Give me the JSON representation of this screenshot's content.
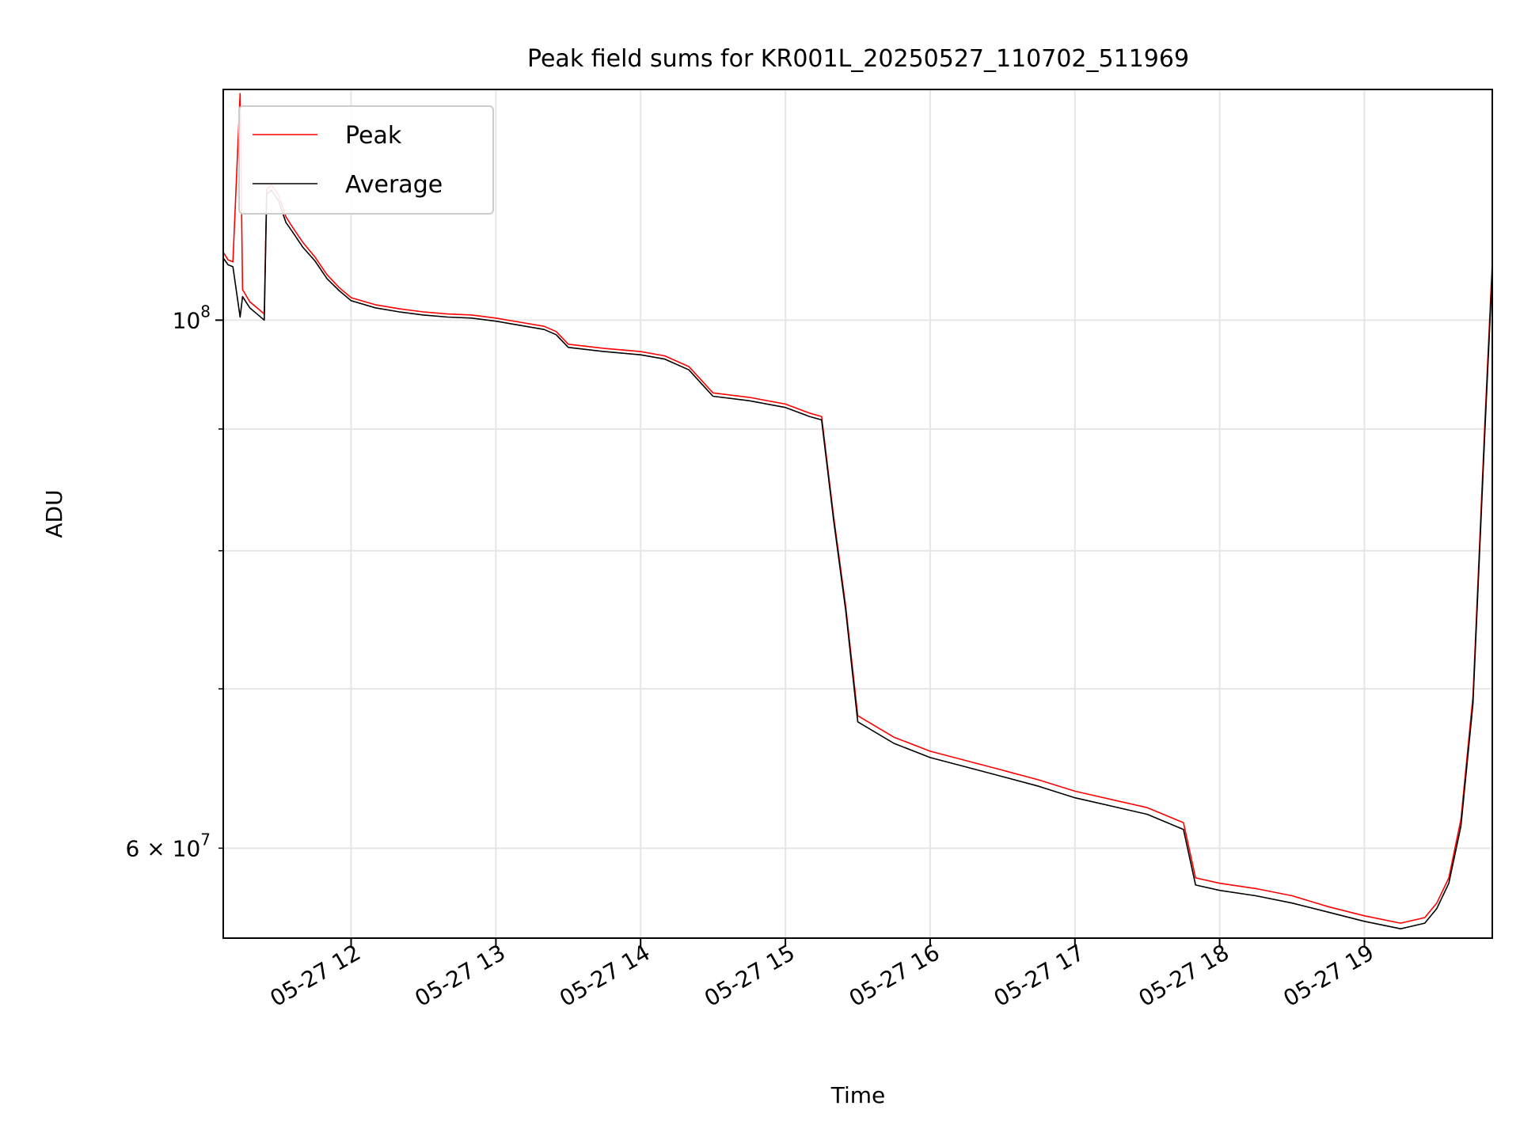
{
  "chart_data": {
    "type": "line",
    "title": "Peak field sums for KR001L_20250527_110702_511969",
    "xlabel": "Time",
    "ylabel": "ADU",
    "x_tick_labels": [
      "05-27 12",
      "05-27 13",
      "05-27 14",
      "05-27 15",
      "05-27 16",
      "05-27 17",
      "05-27 18",
      "05-27 19"
    ],
    "x_ticks": [
      "2025-05-27 12:00",
      "2025-05-27 13:00",
      "2025-05-27 14:00",
      "2025-05-27 15:00",
      "2025-05-27 16:00",
      "2025-05-27 17:00",
      "2025-05-27 18:00",
      "2025-05-27 19:00"
    ],
    "xlim": [
      "2025-05-27 11:07",
      "2025-05-27 19:53"
    ],
    "y_scale": "log",
    "ylim": [
      55000000,
      125000000
    ],
    "y_major_ticks": [
      {
        "value": 100000000,
        "base": "10",
        "exp": "8"
      }
    ],
    "y_labeled_minor_ticks": [
      {
        "value": 60000000,
        "mant": "6",
        "times": "×",
        "base": "10",
        "exp": "7"
      }
    ],
    "y_minor_ticks": [
      60000000,
      70000000,
      80000000,
      90000000
    ],
    "grid": true,
    "legend": {
      "position": "top-left",
      "entries": [
        "Peak",
        "Average"
      ]
    },
    "series": [
      {
        "name": "Peak",
        "color": "#ff0000",
        "points": [
          [
            "11:07",
            106800000
          ],
          [
            "11:09",
            106000000
          ],
          [
            "11:11",
            105800000
          ],
          [
            "11:14",
            124500000
          ],
          [
            "11:15",
            103000000
          ],
          [
            "11:18",
            101800000
          ],
          [
            "11:22",
            101000000
          ],
          [
            "11:24",
            100600000
          ],
          [
            "11:25",
            113500000
          ],
          [
            "11:27",
            114000000
          ],
          [
            "11:30",
            112800000
          ],
          [
            "11:33",
            110500000
          ],
          [
            "11:36",
            109300000
          ],
          [
            "11:40",
            107800000
          ],
          [
            "11:45",
            106300000
          ],
          [
            "11:50",
            104500000
          ],
          [
            "11:55",
            103200000
          ],
          [
            "12:00",
            102200000
          ],
          [
            "12:10",
            101500000
          ],
          [
            "12:20",
            101100000
          ],
          [
            "12:30",
            100800000
          ],
          [
            "12:40",
            100600000
          ],
          [
            "12:50",
            100500000
          ],
          [
            "13:00",
            100200000
          ],
          [
            "13:10",
            99800000
          ],
          [
            "13:20",
            99400000
          ],
          [
            "13:25",
            98900000
          ],
          [
            "13:30",
            97700000
          ],
          [
            "13:45",
            97300000
          ],
          [
            "14:00",
            97000000
          ],
          [
            "14:10",
            96600000
          ],
          [
            "14:20",
            95600000
          ],
          [
            "14:30",
            93200000
          ],
          [
            "14:45",
            92800000
          ],
          [
            "15:00",
            92200000
          ],
          [
            "15:10",
            91400000
          ],
          [
            "15:15",
            91100000
          ],
          [
            "15:20",
            82700000
          ],
          [
            "15:25",
            75800000
          ],
          [
            "15:30",
            68200000
          ],
          [
            "15:45",
            66800000
          ],
          [
            "16:00",
            65900000
          ],
          [
            "16:15",
            65300000
          ],
          [
            "16:30",
            64700000
          ],
          [
            "16:45",
            64100000
          ],
          [
            "17:00",
            63400000
          ],
          [
            "17:15",
            62900000
          ],
          [
            "17:30",
            62400000
          ],
          [
            "17:45",
            61500000
          ],
          [
            "17:50",
            58300000
          ],
          [
            "18:00",
            58000000
          ],
          [
            "18:15",
            57700000
          ],
          [
            "18:30",
            57300000
          ],
          [
            "18:45",
            56700000
          ],
          [
            "19:00",
            56200000
          ],
          [
            "19:15",
            55800000
          ],
          [
            "19:25",
            56100000
          ],
          [
            "19:30",
            56900000
          ],
          [
            "19:35",
            58300000
          ],
          [
            "19:40",
            61700000
          ],
          [
            "19:45",
            69500000
          ],
          [
            "19:50",
            91000000
          ],
          [
            "19:55",
            117000000
          ],
          [
            "19:59",
            118500000
          ],
          [
            "20:01",
            107600000
          ],
          [
            "20:05",
            111500000
          ]
        ]
      },
      {
        "name": "Average",
        "color": "#000000",
        "points": [
          [
            "11:07",
            106200000
          ],
          [
            "11:09",
            105500000
          ],
          [
            "11:11",
            105300000
          ],
          [
            "11:14",
            100300000
          ],
          [
            "11:15",
            102300000
          ],
          [
            "11:18",
            101200000
          ],
          [
            "11:22",
            100400000
          ],
          [
            "11:24",
            100000000
          ],
          [
            "11:25",
            113000000
          ],
          [
            "11:27",
            113400000
          ],
          [
            "11:30",
            112200000
          ],
          [
            "11:33",
            109900000
          ],
          [
            "11:36",
            108800000
          ],
          [
            "11:40",
            107300000
          ],
          [
            "11:45",
            105900000
          ],
          [
            "11:50",
            104100000
          ],
          [
            "11:55",
            102900000
          ],
          [
            "12:00",
            101900000
          ],
          [
            "12:10",
            101200000
          ],
          [
            "12:20",
            100800000
          ],
          [
            "12:30",
            100500000
          ],
          [
            "12:40",
            100300000
          ],
          [
            "12:50",
            100200000
          ],
          [
            "13:00",
            99900000
          ],
          [
            "13:10",
            99500000
          ],
          [
            "13:20",
            99100000
          ],
          [
            "13:25",
            98600000
          ],
          [
            "13:30",
            97400000
          ],
          [
            "13:45",
            97000000
          ],
          [
            "14:00",
            96700000
          ],
          [
            "14:10",
            96300000
          ],
          [
            "14:20",
            95300000
          ],
          [
            "14:30",
            92900000
          ],
          [
            "14:45",
            92500000
          ],
          [
            "15:00",
            91900000
          ],
          [
            "15:10",
            91100000
          ],
          [
            "15:15",
            90800000
          ],
          [
            "15:20",
            82400000
          ],
          [
            "15:25",
            75500000
          ],
          [
            "15:30",
            67800000
          ],
          [
            "15:45",
            66400000
          ],
          [
            "16:00",
            65500000
          ],
          [
            "16:15",
            64900000
          ],
          [
            "16:30",
            64300000
          ],
          [
            "16:45",
            63700000
          ],
          [
            "17:00",
            63000000
          ],
          [
            "17:15",
            62500000
          ],
          [
            "17:30",
            62000000
          ],
          [
            "17:45",
            61100000
          ],
          [
            "17:50",
            57900000
          ],
          [
            "18:00",
            57600000
          ],
          [
            "18:15",
            57300000
          ],
          [
            "18:30",
            56900000
          ],
          [
            "18:45",
            56400000
          ],
          [
            "19:00",
            55900000
          ],
          [
            "19:15",
            55500000
          ],
          [
            "19:25",
            55800000
          ],
          [
            "19:30",
            56600000
          ],
          [
            "19:35",
            58000000
          ],
          [
            "19:40",
            61300000
          ],
          [
            "19:45",
            69000000
          ],
          [
            "19:50",
            90200000
          ],
          [
            "19:55",
            116000000
          ],
          [
            "19:59",
            117500000
          ],
          [
            "20:01",
            106800000
          ],
          [
            "20:05",
            110700000
          ]
        ]
      }
    ]
  }
}
